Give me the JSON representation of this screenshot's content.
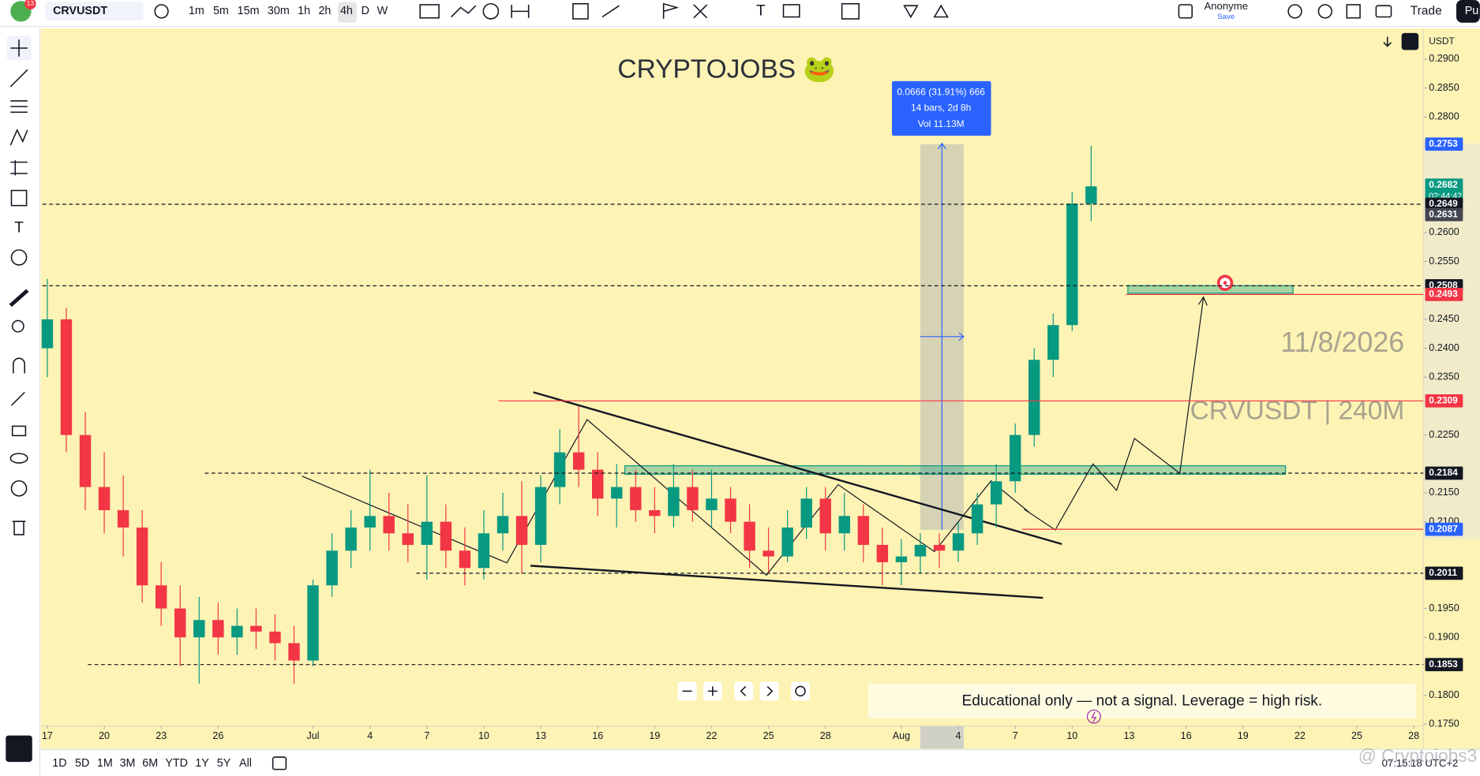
{
  "toolbar": {
    "badge": "13",
    "symbol": "CRVUSDT",
    "intervals": [
      "1m",
      "5m",
      "15m",
      "30m",
      "1h",
      "2h",
      "4h",
      "D",
      "W"
    ],
    "user": "Anonyme",
    "save": "Save",
    "trade": "Trade",
    "publish": "Pu",
    "currency": "USDT"
  },
  "chart_data": {
    "type": "candlestick",
    "title": "CRYPTOJOBS 🐸",
    "xlim": [
      -0.25,
      72.5
    ],
    "ylim": [
      0.175,
      0.295
    ],
    "xticks": [
      {
        "value": 0,
        "label": "17"
      },
      {
        "value": 3,
        "label": "20"
      },
      {
        "value": 6,
        "label": "23"
      },
      {
        "value": 9,
        "label": "26"
      },
      {
        "value": 14,
        "label": "Jul"
      },
      {
        "value": 17,
        "label": "4"
      },
      {
        "value": 20,
        "label": "7"
      },
      {
        "value": 23,
        "label": "10"
      },
      {
        "value": 26,
        "label": "13"
      },
      {
        "value": 29,
        "label": "16"
      },
      {
        "value": 32,
        "label": "19"
      },
      {
        "value": 35,
        "label": "22"
      },
      {
        "value": 38,
        "label": "25"
      },
      {
        "value": 41,
        "label": "28"
      },
      {
        "value": 45,
        "label": "Aug"
      },
      {
        "value": 48,
        "label": "4"
      },
      {
        "value": 51,
        "label": "7"
      },
      {
        "value": 54,
        "label": "10"
      },
      {
        "value": 57,
        "label": "13"
      },
      {
        "value": 60,
        "label": "16"
      },
      {
        "value": 63,
        "label": "19"
      },
      {
        "value": 66,
        "label": "22"
      },
      {
        "value": 69,
        "label": "25"
      },
      {
        "value": 72,
        "label": "28"
      }
    ],
    "yticks": [
      {
        "value": 0.29,
        "label": "0.2900"
      },
      {
        "value": 0.285,
        "label": "0.2850"
      },
      {
        "value": 0.28,
        "label": "0.2800"
      },
      {
        "value": 0.26,
        "label": "0.2600"
      },
      {
        "value": 0.255,
        "label": "0.2550"
      },
      {
        "value": 0.245,
        "label": "0.2450"
      },
      {
        "value": 0.24,
        "label": "0.2400"
      },
      {
        "value": 0.235,
        "label": "0.2350"
      },
      {
        "value": 0.225,
        "label": "0.2250"
      },
      {
        "value": 0.215,
        "label": "0.2150"
      },
      {
        "value": 0.21,
        "label": "0.2100"
      },
      {
        "value": 0.195,
        "label": "0.1950"
      },
      {
        "value": 0.19,
        "label": "0.1900"
      },
      {
        "value": 0.18,
        "label": "0.1800"
      },
      {
        "value": 0.175,
        "label": "0.1750"
      }
    ],
    "up_color": "#089981",
    "down_color": "#f23645",
    "open": [
      0.24,
      0.245,
      0.225,
      0.216,
      0.212,
      0.209,
      0.199,
      0.195,
      0.19,
      0.193,
      0.19,
      0.192,
      0.191,
      0.189,
      0.186,
      0.199,
      0.205,
      0.209,
      0.211,
      0.208,
      0.206,
      0.21,
      0.205,
      0.202,
      0.208,
      0.211,
      0.206,
      0.216,
      0.222,
      0.219,
      0.214,
      0.216,
      0.212,
      0.211,
      0.216,
      0.212,
      0.214,
      0.21,
      0.205,
      0.204,
      0.209,
      0.214,
      0.208,
      0.211,
      0.206,
      0.203,
      0.204,
      0.206,
      0.205,
      0.208,
      0.213,
      0.217,
      0.225,
      0.238,
      0.244,
      0.265
    ],
    "high": [
      0.252,
      0.247,
      0.229,
      0.222,
      0.218,
      0.212,
      0.203,
      0.199,
      0.197,
      0.196,
      0.195,
      0.195,
      0.194,
      0.192,
      0.2,
      0.208,
      0.212,
      0.219,
      0.215,
      0.213,
      0.218,
      0.213,
      0.209,
      0.212,
      0.215,
      0.217,
      0.218,
      0.226,
      0.23,
      0.222,
      0.22,
      0.219,
      0.216,
      0.22,
      0.219,
      0.219,
      0.216,
      0.213,
      0.209,
      0.212,
      0.216,
      0.216,
      0.215,
      0.213,
      0.209,
      0.207,
      0.208,
      0.208,
      0.21,
      0.215,
      0.22,
      0.227,
      0.24,
      0.246,
      0.267,
      0.275
    ],
    "low": [
      0.235,
      0.222,
      0.212,
      0.208,
      0.204,
      0.196,
      0.192,
      0.185,
      0.182,
      0.187,
      0.187,
      0.188,
      0.186,
      0.182,
      0.185,
      0.197,
      0.202,
      0.205,
      0.205,
      0.203,
      0.2,
      0.202,
      0.199,
      0.2,
      0.205,
      0.201,
      0.203,
      0.213,
      0.216,
      0.211,
      0.209,
      0.21,
      0.208,
      0.209,
      0.21,
      0.209,
      0.208,
      0.202,
      0.201,
      0.203,
      0.207,
      0.205,
      0.205,
      0.203,
      0.199,
      0.199,
      0.201,
      0.202,
      0.203,
      0.206,
      0.209,
      0.215,
      0.223,
      0.235,
      0.243,
      0.262
    ],
    "close": [
      0.245,
      0.225,
      0.216,
      0.212,
      0.209,
      0.199,
      0.195,
      0.19,
      0.193,
      0.19,
      0.192,
      0.191,
      0.189,
      0.186,
      0.199,
      0.205,
      0.209,
      0.211,
      0.208,
      0.206,
      0.21,
      0.205,
      0.202,
      0.208,
      0.211,
      0.206,
      0.216,
      0.222,
      0.219,
      0.214,
      0.216,
      0.212,
      0.211,
      0.216,
      0.212,
      0.214,
      0.21,
      0.205,
      0.204,
      0.209,
      0.214,
      0.208,
      0.211,
      0.206,
      0.203,
      0.204,
      0.206,
      0.205,
      0.208,
      0.213,
      0.217,
      0.225,
      0.238,
      0.244,
      0.265,
      0.268
    ],
    "levels": [
      {
        "value": 0.2753,
        "color": "#2962ff",
        "line": "none"
      },
      {
        "value": 0.2682,
        "color": "#089981",
        "line": "none"
      },
      {
        "value": 0.2649,
        "color": "#131722",
        "line": "dashed"
      },
      {
        "value": 0.2631,
        "color": "#434651",
        "line": "none"
      },
      {
        "value": 0.2508,
        "color": "#131722",
        "line": "dashed"
      },
      {
        "value": 0.2493,
        "color": "#f23645",
        "line": "solid"
      },
      {
        "value": 0.2309,
        "color": "#f23645",
        "line": "solid"
      },
      {
        "value": 0.2184,
        "color": "#131722",
        "line": "dashed"
      },
      {
        "value": 0.2087,
        "color": "#2962ff",
        "line": "solid"
      },
      {
        "value": 0.2011,
        "color": "#131722",
        "line": "dashed"
      },
      {
        "value": 0.1853,
        "color": "#131722",
        "line": "dashed"
      }
    ],
    "countdown": "02:44:42",
    "measure": [
      "0.0666 (31.91%) 666",
      "14 bars, 2d 8h",
      "Vol 11.13M"
    ],
    "date_note": "11/8/2026",
    "symbol_note": "CRVUSDT | 240M",
    "disclaimer": "Educational only — not a signal. Leverage  = high risk."
  },
  "footer": {
    "ranges": [
      "1D",
      "5D",
      "1M",
      "3M",
      "6M",
      "YTD",
      "1Y",
      "5Y",
      "All"
    ],
    "clock": "07:15:18 UTC+2",
    "watermark": "@ Cryptojobs3"
  }
}
